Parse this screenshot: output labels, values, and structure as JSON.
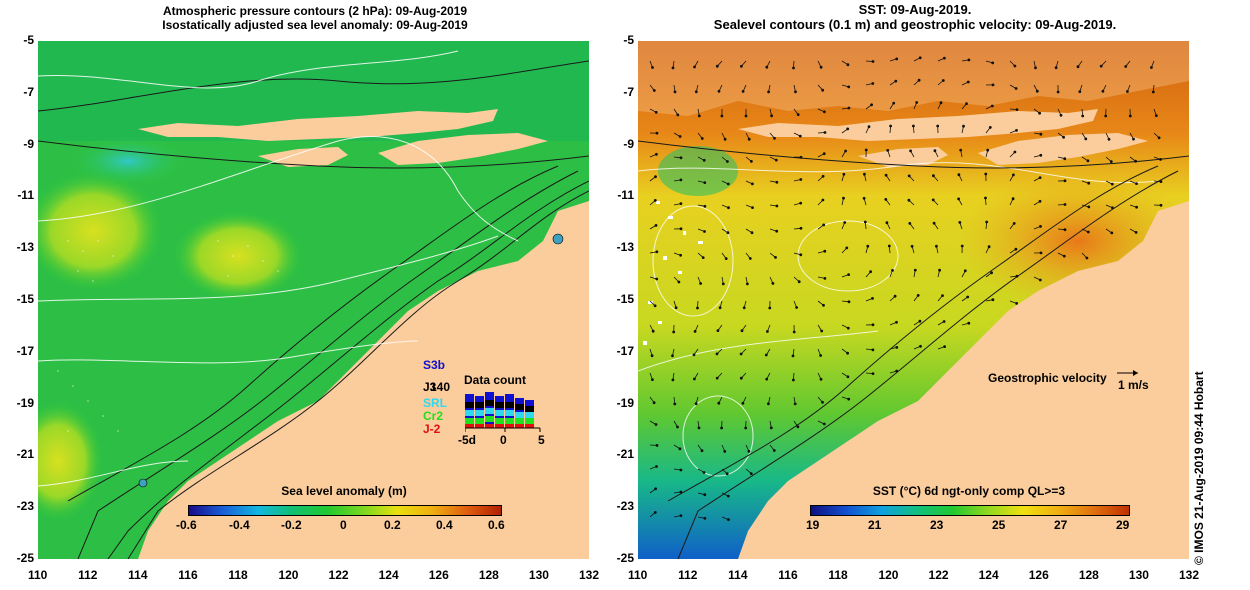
{
  "left_map": {
    "title_line1": "Atmospheric pressure contours (2 hPa): 09-Aug-2019",
    "title_line2": "Isostatically adjusted sea level anomaly: 09-Aug-2019",
    "colorbar": {
      "title": "Sea level anomaly (m)",
      "ticks": [
        "-0.6",
        "-0.4",
        "-0.2",
        "0",
        "0.2",
        "0.4",
        "0.6"
      ],
      "colors": [
        "#1a0a8c",
        "#1860d8",
        "#12b8e0",
        "#10c070",
        "#22c830",
        "#78d820",
        "#e8e010",
        "#f0b010",
        "#e06010",
        "#b02000"
      ]
    },
    "data_count": {
      "title": "Data count",
      "value": "140",
      "satellites": [
        {
          "name": "S3b",
          "color": "#1010d0"
        },
        {
          "name": "J3",
          "color": "#000000"
        },
        {
          "name": "SRL",
          "color": "#30d8f0"
        },
        {
          "name": "Cr2",
          "color": "#20e020"
        },
        {
          "name": "J-2",
          "color": "#e01010"
        }
      ],
      "axis_ticks": [
        "-5d",
        "0",
        "5"
      ]
    }
  },
  "right_map": {
    "title_line1": "SST: 09-Aug-2019.",
    "title_line2": "Sealevel contours (0.1 m) and geostrophic velocity: 09-Aug-2019.",
    "velocity_legend": "Geostrophic velocity",
    "velocity_scale": "1 m/s",
    "colorbar": {
      "title": "SST (°C) 6d ngt-only comp QL>=3",
      "ticks": [
        "19",
        "21",
        "23",
        "25",
        "27",
        "29"
      ],
      "colors": [
        "#101080",
        "#1050d0",
        "#10a0e0",
        "#10c080",
        "#20c830",
        "#90d820",
        "#f0e010",
        "#f0b010",
        "#e07010",
        "#c03000"
      ]
    }
  },
  "axes": {
    "lat_ticks": [
      "-5",
      "-7",
      "-9",
      "-11",
      "-13",
      "-15",
      "-17",
      "-19",
      "-21",
      "-23",
      "-25"
    ],
    "lon_ticks": [
      "110",
      "112",
      "114",
      "116",
      "118",
      "120",
      "122",
      "124",
      "126",
      "128",
      "130",
      "132"
    ]
  },
  "credit": "© IMOS 21-Aug-2019 09:44 Hobart",
  "palette": {
    "land": "#fbcd9c",
    "ocean_green": "#2fc63a",
    "anomaly_yellow": "#b8e020",
    "sst_orange": "#f09020",
    "sst_yellow": "#e8d820"
  }
}
